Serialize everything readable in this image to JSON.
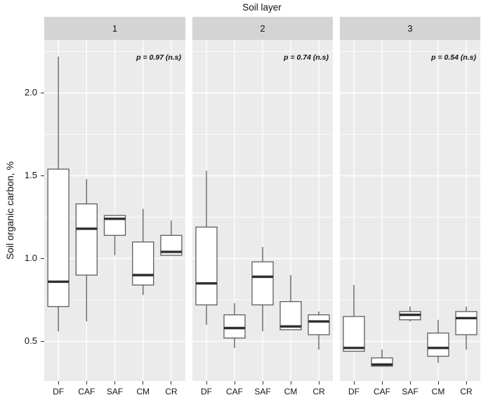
{
  "title": "Soil layer",
  "ylabel": "Soil organic carbon, %",
  "chart_data": {
    "type": "boxplot",
    "facet_title": "Soil layer",
    "ylabel": "Soil organic carbon, %",
    "categories": [
      "DF",
      "CAF",
      "SAF",
      "CM",
      "CR"
    ],
    "ylim": [
      0.26,
      2.32
    ],
    "y_major_ticks": [
      0.5,
      1.0,
      1.5,
      2.0
    ],
    "y_minor_ticks": [
      0.75,
      1.25,
      1.75,
      2.25
    ],
    "grid": "on",
    "facets": [
      {
        "label": "1",
        "p_annotation": "p = 0.97 (n.s)",
        "boxes": [
          {
            "category": "DF",
            "min": 0.56,
            "q1": 0.71,
            "median": 0.86,
            "q3": 1.54,
            "max": 2.22
          },
          {
            "category": "CAF",
            "min": 0.62,
            "q1": 0.9,
            "median": 1.18,
            "q3": 1.33,
            "max": 1.48
          },
          {
            "category": "SAF",
            "min": 1.02,
            "q1": 1.14,
            "median": 1.24,
            "q3": 1.26,
            "max": 1.26
          },
          {
            "category": "CM",
            "min": 0.78,
            "q1": 0.84,
            "median": 0.9,
            "q3": 1.1,
            "max": 1.3
          },
          {
            "category": "CR",
            "min": 1.02,
            "q1": 1.02,
            "median": 1.04,
            "q3": 1.14,
            "max": 1.23
          }
        ]
      },
      {
        "label": "2",
        "p_annotation": "p = 0.74 (n.s)",
        "boxes": [
          {
            "category": "DF",
            "min": 0.6,
            "q1": 0.72,
            "median": 0.85,
            "q3": 1.19,
            "max": 1.53
          },
          {
            "category": "CAF",
            "min": 0.46,
            "q1": 0.52,
            "median": 0.58,
            "q3": 0.66,
            "max": 0.73
          },
          {
            "category": "SAF",
            "min": 0.56,
            "q1": 0.72,
            "median": 0.89,
            "q3": 0.98,
            "max": 1.07
          },
          {
            "category": "CM",
            "min": 0.57,
            "q1": 0.57,
            "median": 0.59,
            "q3": 0.74,
            "max": 0.9
          },
          {
            "category": "CR",
            "min": 0.45,
            "q1": 0.54,
            "median": 0.62,
            "q3": 0.66,
            "max": 0.68
          }
        ]
      },
      {
        "label": "3",
        "p_annotation": "p = 0.54 (n.s)",
        "boxes": [
          {
            "category": "DF",
            "min": 0.44,
            "q1": 0.44,
            "median": 0.46,
            "q3": 0.65,
            "max": 0.84
          },
          {
            "category": "CAF",
            "min": 0.35,
            "q1": 0.35,
            "median": 0.36,
            "q3": 0.4,
            "max": 0.45
          },
          {
            "category": "SAF",
            "min": 0.62,
            "q1": 0.63,
            "median": 0.66,
            "q3": 0.68,
            "max": 0.71
          },
          {
            "category": "CM",
            "min": 0.37,
            "q1": 0.41,
            "median": 0.46,
            "q3": 0.55,
            "max": 0.63
          },
          {
            "category": "CR",
            "min": 0.45,
            "q1": 0.54,
            "median": 0.64,
            "q3": 0.68,
            "max": 0.71
          }
        ]
      }
    ]
  },
  "colors": {
    "panel_bg": "#ebebeb",
    "strip_bg": "#d4d4d4",
    "grid": "#ffffff",
    "box_stroke": "#5d5d5d",
    "box_fill": "#ffffff",
    "median": "#2d2d2d",
    "tick": "#333333",
    "text": "#141414"
  }
}
